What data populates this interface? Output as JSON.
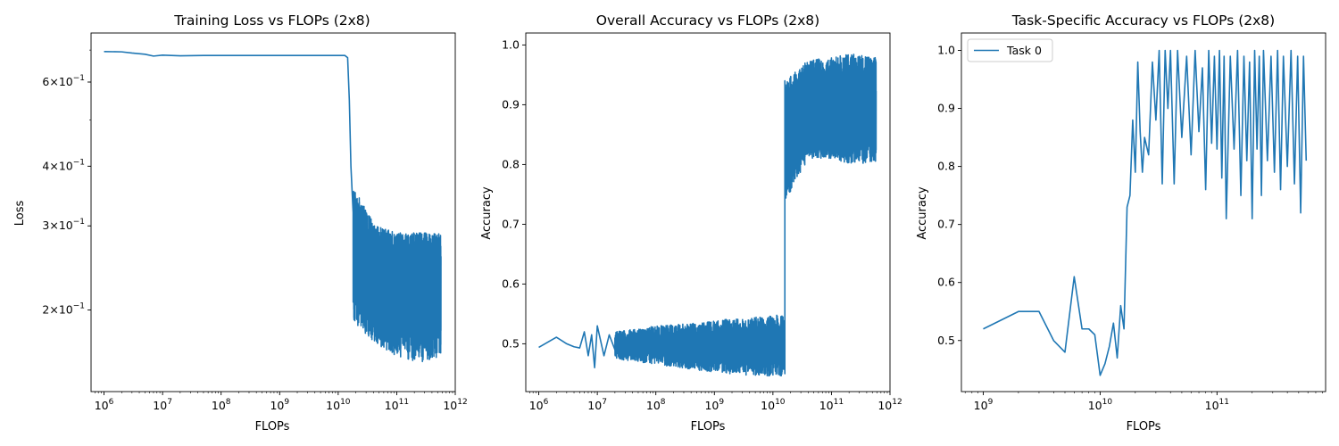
{
  "chart_data": [
    {
      "type": "line",
      "title": "Training Loss vs FLOPs (2x8)",
      "xlabel": "FLOPs",
      "ylabel": "Loss",
      "xscale": "log",
      "yscale": "log",
      "xlim": [
        600000.0,
        1000000000000.0
      ],
      "ylim": [
        0.135,
        0.76
      ],
      "grid": false,
      "x_ticks": [
        {
          "value": 1000000.0,
          "base": "10",
          "exp": "6"
        },
        {
          "value": 10000000.0,
          "base": "10",
          "exp": "7"
        },
        {
          "value": 100000000.0,
          "base": "10",
          "exp": "8"
        },
        {
          "value": 1000000000.0,
          "base": "10",
          "exp": "9"
        },
        {
          "value": 10000000000.0,
          "base": "10",
          "exp": "10"
        },
        {
          "value": 100000000000.0,
          "base": "10",
          "exp": "11"
        },
        {
          "value": 1000000000000.0,
          "base": "10",
          "exp": "12"
        }
      ],
      "y_ticks": [
        {
          "value": 0.2,
          "mant": "2",
          "base": "10",
          "exp": "−1"
        },
        {
          "value": 0.3,
          "mant": "3",
          "base": "10",
          "exp": "−1"
        },
        {
          "value": 0.4,
          "mant": "4",
          "base": "10",
          "exp": "−1"
        },
        {
          "value": 0.6,
          "mant": "6",
          "base": "10",
          "exp": "−1"
        }
      ],
      "series": [
        {
          "x": [
            1000000.0,
            2000000.0,
            3000000.0,
            5000000.0,
            7000000.0,
            10000000.0,
            20000000.0,
            50000000.0,
            100000000.0,
            1000000000.0,
            10000000000.0,
            13000000000.0,
            14500000000.0,
            15500000000.0,
            16500000000.0,
            18000000000.0
          ],
          "y": [
            0.695,
            0.694,
            0.69,
            0.686,
            0.68,
            0.683,
            0.681,
            0.682,
            0.682,
            0.682,
            0.682,
            0.682,
            0.675,
            0.55,
            0.4,
            0.32
          ],
          "band": {
            "x_start": 18000000000.0,
            "x_end": 570000000000.0,
            "upper": [
              0.36,
              0.3,
              0.29,
              0.29,
              0.29
            ],
            "lower": [
              0.19,
              0.17,
              0.16,
              0.155,
              0.16
            ]
          }
        }
      ]
    },
    {
      "type": "line",
      "title": "Overall Accuracy vs FLOPs (2x8)",
      "xlabel": "FLOPs",
      "ylabel": "Accuracy",
      "xscale": "log",
      "xlim": [
        600000.0,
        1000000000000.0
      ],
      "ylim": [
        0.42,
        1.02
      ],
      "grid": false,
      "x_ticks": [
        {
          "value": 1000000.0,
          "base": "10",
          "exp": "6"
        },
        {
          "value": 10000000.0,
          "base": "10",
          "exp": "7"
        },
        {
          "value": 100000000.0,
          "base": "10",
          "exp": "8"
        },
        {
          "value": 1000000000.0,
          "base": "10",
          "exp": "9"
        },
        {
          "value": 10000000000.0,
          "base": "10",
          "exp": "10"
        },
        {
          "value": 100000000000.0,
          "base": "10",
          "exp": "11"
        },
        {
          "value": 1000000000000.0,
          "base": "10",
          "exp": "12"
        }
      ],
      "y_ticks": [
        {
          "value": 0.5,
          "label": "0.5"
        },
        {
          "value": 0.6,
          "label": "0.6"
        },
        {
          "value": 0.7,
          "label": "0.7"
        },
        {
          "value": 0.8,
          "label": "0.8"
        },
        {
          "value": 0.9,
          "label": "0.9"
        },
        {
          "value": 1.0,
          "label": "1.0"
        }
      ],
      "series": [
        {
          "x": [
            1000000.0,
            2000000.0,
            3000000.0,
            4000000.0,
            5000000.0,
            6000000.0,
            7000000.0,
            8000000.0,
            9000000.0,
            10000000.0,
            13000000.0,
            16000000.0,
            20000000.0
          ],
          "y": [
            0.494,
            0.511,
            0.5,
            0.495,
            0.493,
            0.52,
            0.48,
            0.515,
            0.46,
            0.53,
            0.48,
            0.515,
            0.49
          ],
          "band_low": {
            "x_start": 20000000.0,
            "x_end": 15800000000.0,
            "upper": [
              0.52,
              0.53,
              0.535,
              0.545,
              0.55
            ],
            "lower": [
              0.475,
              0.465,
              0.455,
              0.448,
              0.445
            ]
          },
          "jump": {
            "x": 16000000000.0,
            "from": 0.45,
            "to": 0.94
          },
          "band_high": {
            "x_start": 16500000000.0,
            "x_end": 580000000000.0,
            "upper": [
              0.94,
              0.975,
              0.98,
              0.985,
              0.98
            ],
            "lower": [
              0.74,
              0.81,
              0.81,
              0.8,
              0.805
            ]
          }
        }
      ]
    },
    {
      "type": "line",
      "title": "Task-Specific Accuracy vs FLOPs (2x8)",
      "xlabel": "FLOPs",
      "ylabel": "Accuracy",
      "xscale": "log",
      "xlim": [
        650000000.0,
        850000000000.0
      ],
      "ylim": [
        0.412,
        1.03
      ],
      "grid": false,
      "legend": "upper left",
      "x_ticks": [
        {
          "value": 1000000000.0,
          "base": "10",
          "exp": "9"
        },
        {
          "value": 10000000000.0,
          "base": "10",
          "exp": "10"
        },
        {
          "value": 100000000000.0,
          "base": "10",
          "exp": "11"
        }
      ],
      "y_ticks": [
        {
          "value": 0.5,
          "label": "0.5"
        },
        {
          "value": 0.6,
          "label": "0.6"
        },
        {
          "value": 0.7,
          "label": "0.7"
        },
        {
          "value": 0.8,
          "label": "0.8"
        },
        {
          "value": 0.9,
          "label": "0.9"
        },
        {
          "value": 1.0,
          "label": "1.0"
        }
      ],
      "series": [
        {
          "name": "Task 0",
          "x": [
            1000000000.0,
            2000000000.0,
            3000000000.0,
            4000000000.0,
            5000000000.0,
            6000000000.0,
            7000000000.0,
            8000000000.0,
            9000000000.0,
            10000000000.0,
            11000000000.0,
            12000000000.0,
            13000000000.0,
            14000000000.0,
            15000000000.0,
            16000000000.0,
            17000000000.0,
            18000000000.0,
            19000000000.0,
            20000000000.0,
            21000000000.0,
            22000000000.0,
            23000000000.0,
            24000000000.0,
            26000000000.0,
            28000000000.0,
            30000000000.0,
            32000000000.0,
            34000000000.0,
            36000000000.0,
            38000000000.0,
            40000000000.0,
            43000000000.0,
            46000000000.0,
            50000000000.0,
            55000000000.0,
            60000000000.0,
            65000000000.0,
            70000000000.0,
            75000000000.0,
            80000000000.0,
            85000000000.0,
            90000000000.0,
            95000000000.0,
            100000000000.0,
            105000000000.0,
            110000000000.0,
            115000000000.0,
            120000000000.0,
            130000000000.0,
            140000000000.0,
            150000000000.0,
            160000000000.0,
            170000000000.0,
            180000000000.0,
            190000000000.0,
            200000000000.0,
            210000000000.0,
            220000000000.0,
            230000000000.0,
            240000000000.0,
            250000000000.0,
            270000000000.0,
            290000000000.0,
            310000000000.0,
            330000000000.0,
            350000000000.0,
            370000000000.0,
            400000000000.0,
            430000000000.0,
            460000000000.0,
            490000000000.0,
            520000000000.0,
            550000000000.0,
            580000000000.0
          ],
          "y": [
            0.52,
            0.55,
            0.55,
            0.5,
            0.48,
            0.61,
            0.52,
            0.52,
            0.51,
            0.44,
            0.46,
            0.49,
            0.53,
            0.47,
            0.56,
            0.52,
            0.73,
            0.75,
            0.88,
            0.79,
            0.98,
            0.86,
            0.79,
            0.85,
            0.82,
            0.98,
            0.88,
            1.0,
            0.77,
            1.0,
            0.9,
            1.0,
            0.77,
            1.0,
            0.85,
            0.99,
            0.82,
            1.0,
            0.86,
            0.97,
            0.76,
            1.0,
            0.84,
            0.99,
            0.83,
            1.0,
            0.78,
            0.99,
            0.71,
            0.99,
            0.83,
            1.0,
            0.75,
            0.99,
            0.81,
            0.98,
            0.71,
            1.0,
            0.83,
            0.99,
            0.75,
            1.0,
            0.81,
            0.99,
            0.79,
            1.0,
            0.76,
            0.99,
            0.8,
            1.0,
            0.77,
            0.99,
            0.72,
            0.99,
            0.81
          ]
        }
      ]
    }
  ],
  "colors": {
    "series": "#1f77b4",
    "axes": "#000000",
    "background": "#ffffff",
    "legend_border": "#cccccc"
  }
}
